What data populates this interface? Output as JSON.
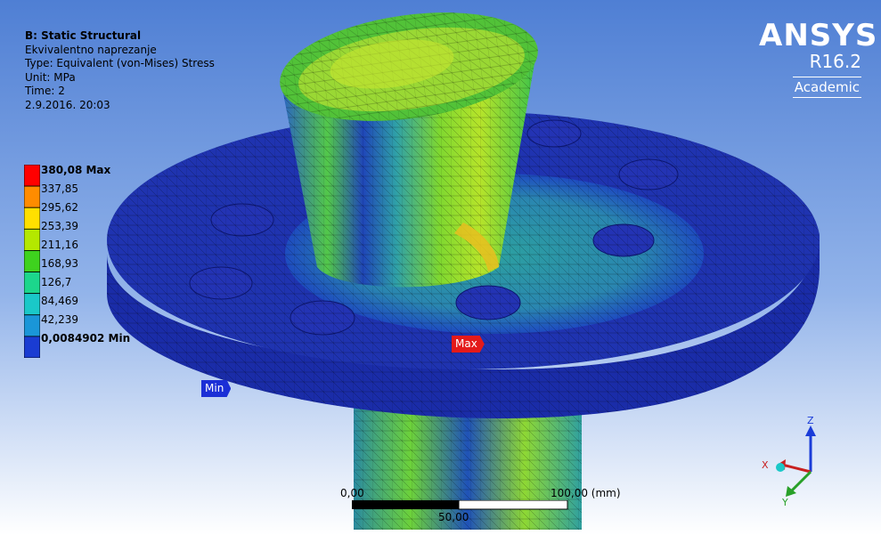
{
  "header": {
    "title": "B: Static Structural",
    "result_name": "Ekvivalentno naprezanje",
    "type": "Type: Equivalent (von-Mises) Stress",
    "unit": "Unit: MPa",
    "time": "Time: 2",
    "date": "2.9.2016. 20:03"
  },
  "legend": {
    "values": [
      "380,08 Max",
      "337,85",
      "295,62",
      "253,39",
      "211,16",
      "168,93",
      "126,7",
      "84,469",
      "42,239",
      "0,0084902 Min"
    ],
    "colors": [
      "#ff0000",
      "#ff8c00",
      "#ffe000",
      "#b4e800",
      "#3ed21e",
      "#1cd68c",
      "#1ac8c8",
      "#1a96d8",
      "#1a3cd2"
    ]
  },
  "logo": {
    "brand": "ANSYS",
    "version": "R16.2",
    "edition": "Academic"
  },
  "probes": {
    "max": "Max",
    "min": "Min"
  },
  "scale": {
    "left": "0,00",
    "right": "100,00 (mm)",
    "mid": "50,00"
  },
  "triad": {
    "z": "Z",
    "x": "X",
    "y": "Y"
  },
  "colors": {
    "background_top": "#4f7fd4",
    "background_bottom": "#ffffff",
    "model_dark": "#1a2ca8"
  }
}
